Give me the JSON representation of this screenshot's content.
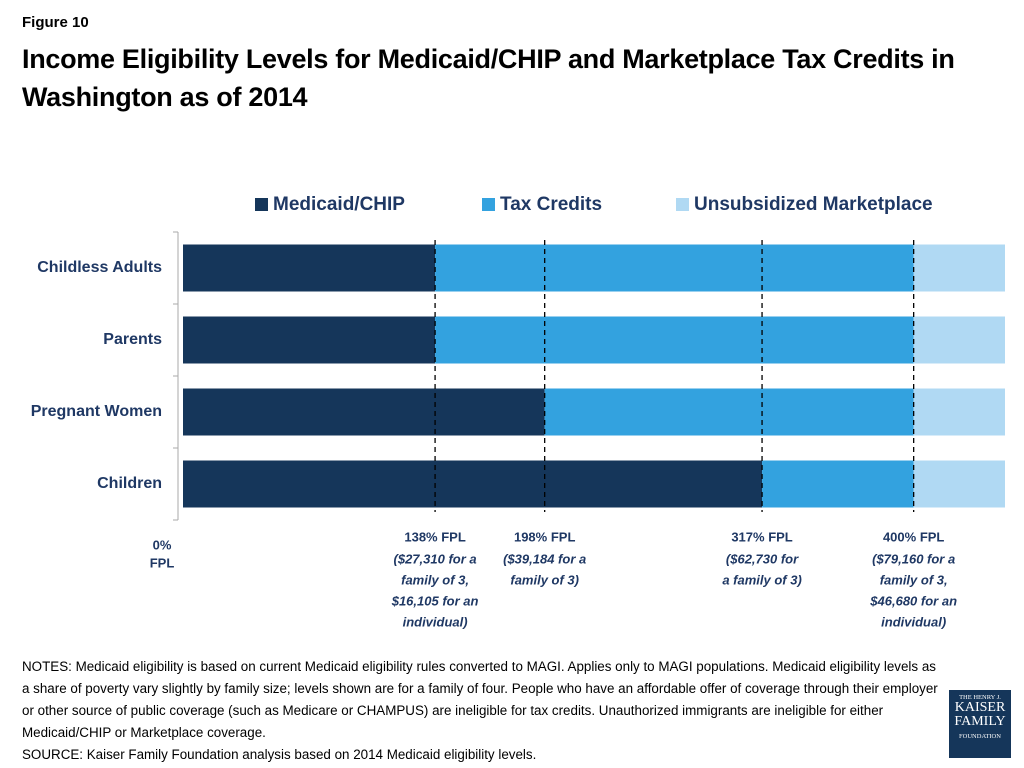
{
  "figure_label": "Figure 10",
  "chart_data": {
    "type": "stacked-bar-horizontal",
    "title": "Income Eligibility Levels for Medicaid/CHIP and Marketplace Tax Credits in Washington as of 2014",
    "categories": [
      "Childless Adults",
      "Parents",
      "Pregnant Women",
      "Children"
    ],
    "series": [
      {
        "name": "Medicaid/CHIP",
        "color": "#15365a",
        "values": [
          138,
          138,
          198,
          317
        ]
      },
      {
        "name": "Tax Credits",
        "color": "#33a2df",
        "values": [
          262,
          262,
          202,
          83
        ]
      },
      {
        "name": "Unsubsidized Marketplace",
        "color": "#b0d9f3",
        "values": [
          50,
          50,
          50,
          50
        ]
      }
    ],
    "xlim": [
      0,
      450
    ],
    "origin_label": {
      "value": 0,
      "lines": [
        "0%",
        "FPL"
      ]
    },
    "thresholds": [
      {
        "value": 138,
        "label": "138% FPL",
        "note": [
          "($27,310 for a",
          "family of 3,",
          "$16,105 for an",
          "individual)"
        ]
      },
      {
        "value": 198,
        "label": "198% FPL",
        "note": [
          "($39,184 for a",
          "family of 3)"
        ]
      },
      {
        "value": 317,
        "label": "317% FPL",
        "note": [
          "($62,730 for",
          "a family of 3)"
        ]
      },
      {
        "value": 400,
        "label": "400% FPL",
        "note": [
          "($79,160 for a",
          "family of 3,",
          "$46,680 for an",
          "individual)"
        ]
      }
    ],
    "legend": "top"
  },
  "notes": "NOTES: Medicaid eligibility is based on current Medicaid eligibility rules converted to MAGI. Applies only to MAGI populations. Medicaid eligibility levels as a share of poverty vary slightly by family size; levels shown are for a family of four. People who have an affordable offer of coverage through their employer or other source of public coverage (such as Medicare or CHAMPUS) are ineligible for tax credits. Unauthorized immigrants are ineligible for either Medicaid/CHIP or Marketplace coverage.",
  "source": "SOURCE: Kaiser Family Foundation analysis based on 2014 Medicaid eligibility levels.",
  "logo": [
    "THE HENRY J.",
    "KAISER",
    "FAMILY",
    "FOUNDATION"
  ]
}
